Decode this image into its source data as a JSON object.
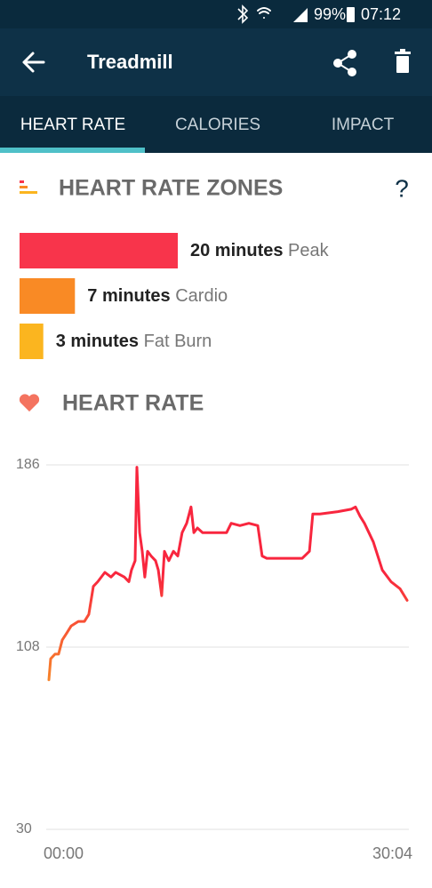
{
  "status_bar": {
    "battery": "99%",
    "time": "07:12"
  },
  "header": {
    "title": "Treadmill"
  },
  "tabs": [
    "HEART RATE",
    "CALORIES",
    "IMPACT"
  ],
  "zones": {
    "title": "HEART RATE ZONES",
    "help": "?",
    "items": [
      {
        "value": 20,
        "value_label": "20 minutes",
        "label": "Peak",
        "color": "#f8344b"
      },
      {
        "value": 7,
        "value_label": "7 minutes",
        "label": "Cardio",
        "color": "#f98a25"
      },
      {
        "value": 3,
        "value_label": "3 minutes",
        "label": "Fat Burn",
        "color": "#fbb51f"
      }
    ]
  },
  "heart_rate": {
    "title": "HEART RATE",
    "chart_data": {
      "type": "line",
      "x": [
        0,
        9,
        31,
        49,
        67,
        90,
        112,
        148,
        179,
        201,
        224,
        246,
        282,
        313,
        336,
        380,
        403,
        416,
        434,
        443,
        457,
        470,
        483,
        497,
        515,
        537,
        551,
        568,
        582,
        604,
        627,
        649,
        671,
        694,
        716,
        730,
        748,
        774,
        828,
        895,
        918,
        962,
        1007,
        1052,
        1074,
        1097,
        1186,
        1276,
        1312,
        1329,
        1365,
        1455,
        1522,
        1544,
        1567,
        1589,
        1634,
        1679,
        1723,
        1768,
        1804
      ],
      "series": [
        {
          "color": "#f8263e",
          "color_low": "#f7842a",
          "values": [
            94,
            103,
            105,
            105,
            111,
            114,
            117,
            119,
            119,
            122,
            134,
            136,
            140,
            138,
            140,
            138,
            136,
            141,
            145,
            185,
            157,
            149,
            138,
            149,
            147,
            145,
            141,
            130,
            149,
            145,
            149,
            147,
            157,
            161,
            168,
            157,
            159,
            157,
            157,
            157,
            161,
            160,
            161,
            160,
            147,
            146,
            146,
            146,
            149,
            165,
            165,
            166,
            167,
            168,
            164,
            161,
            153,
            141,
            136,
            133,
            128
          ]
        }
      ],
      "xlim": [
        0,
        1804
      ],
      "xticks": [
        {
          "value": 0,
          "label": "00:00"
        },
        {
          "value": 1804,
          "label": "30:04"
        }
      ],
      "ylim": [
        30,
        186
      ],
      "yticks": [
        30,
        108,
        186
      ],
      "grid": true
    }
  }
}
